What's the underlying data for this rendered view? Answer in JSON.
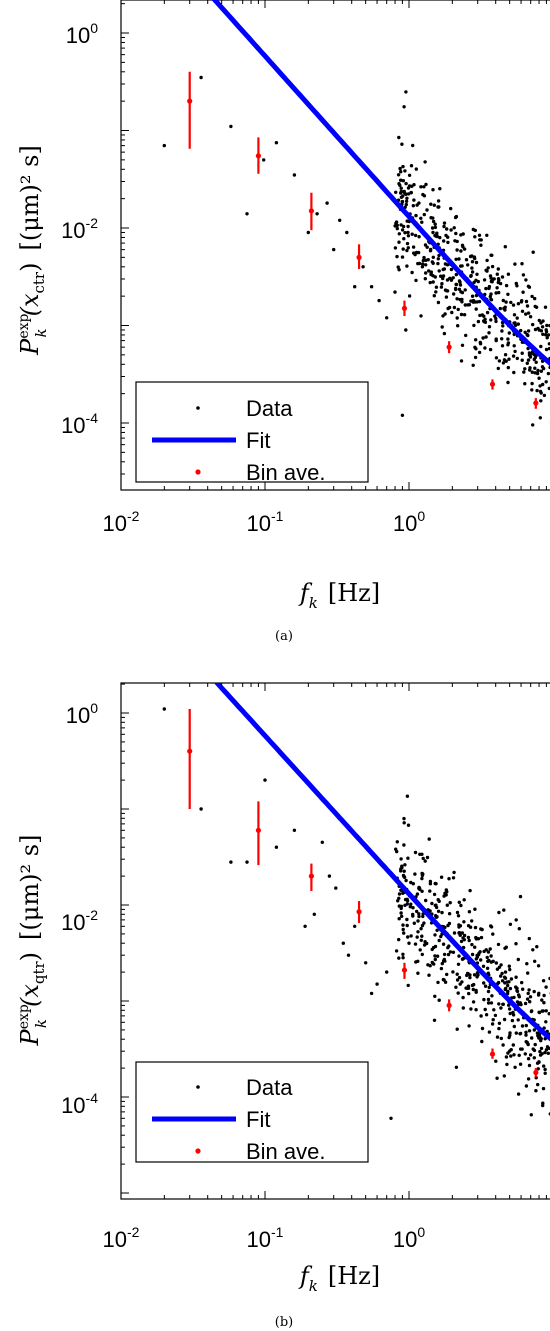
{
  "chart_data": [
    {
      "type": "scatter",
      "panel_caption": "(a)",
      "xlabel": "f_k [Hz]",
      "ylabel": "P_k^exp(x_ctr) [(μm)² s]",
      "xscale": "log",
      "yscale": "log",
      "xlim": [
        0.01,
        10
      ],
      "ylim": [
        1e-05,
        2
      ],
      "xticks": [
        0.01,
        0.1,
        1
      ],
      "xtick_labels": [
        {
          "base": "10",
          "exp": "-2"
        },
        {
          "base": "10",
          "exp": "-1"
        },
        {
          "base": "10",
          "exp": "0"
        }
      ],
      "yticks": [
        0.0001,
        0.01,
        1
      ],
      "ytick_labels": [
        {
          "base": "10",
          "exp": "-4"
        },
        {
          "base": "10",
          "exp": "-2"
        },
        {
          "base": "10",
          "exp": "0"
        }
      ],
      "legend": {
        "position": "lower-left",
        "entries": [
          "Data",
          "Fit",
          "Bin ave."
        ]
      },
      "series": [
        {
          "name": "Data",
          "kind": "points",
          "color": "#000000",
          "seed": 11,
          "points": [
            [
              0.02,
              0.07
            ],
            [
              0.036,
              0.35
            ],
            [
              0.058,
              0.11
            ],
            [
              0.075,
              0.014
            ],
            [
              0.098,
              0.05
            ],
            [
              0.12,
              0.075
            ],
            [
              0.16,
              0.035
            ],
            [
              0.2,
              0.009
            ],
            [
              0.23,
              0.014
            ],
            [
              0.27,
              0.018
            ],
            [
              0.3,
              0.006
            ],
            [
              0.33,
              0.012
            ],
            [
              0.37,
              0.009
            ],
            [
              0.42,
              0.0025
            ],
            [
              0.48,
              0.004
            ],
            [
              0.55,
              0.0025
            ],
            [
              0.62,
              0.0018
            ],
            [
              0.7,
              0.0012
            ],
            [
              0.8,
              0.0022
            ],
            [
              0.9,
              0.00012
            ],
            [
              0.95,
              0.0009
            ],
            [
              1.05,
              0.0035
            ]
          ],
          "cloud": {
            "x_from": 0.8,
            "x_to": 10,
            "count": 520,
            "spread_decades": 0.35
          }
        },
        {
          "name": "Fit",
          "kind": "line",
          "color": "#0000ff",
          "model": {
            "a": 0.013,
            "alpha": 1.65,
            "c": 9.5e-05
          },
          "x_from": 0.02,
          "x_to": 10
        },
        {
          "name": "Bin ave.",
          "kind": "errorbars",
          "color": "#ff0000",
          "points": [
            {
              "x": 0.03,
              "y": 0.2,
              "lo": 0.065,
              "hi": 0.4
            },
            {
              "x": 0.09,
              "y": 0.055,
              "lo": 0.036,
              "hi": 0.085
            },
            {
              "x": 0.21,
              "y": 0.015,
              "lo": 0.0095,
              "hi": 0.023
            },
            {
              "x": 0.45,
              "y": 0.005,
              "lo": 0.0038,
              "hi": 0.0068
            },
            {
              "x": 0.93,
              "y": 0.0015,
              "lo": 0.00125,
              "hi": 0.0018
            },
            {
              "x": 1.9,
              "y": 0.0006,
              "lo": 0.00052,
              "hi": 0.00069
            },
            {
              "x": 3.8,
              "y": 0.00025,
              "lo": 0.00022,
              "hi": 0.00028
            },
            {
              "x": 7.6,
              "y": 0.00016,
              "lo": 0.00014,
              "hi": 0.00018
            }
          ]
        }
      ]
    },
    {
      "type": "scatter",
      "panel_caption": "(b)",
      "xlabel": "f_k [Hz]",
      "ylabel": "P_k^exp(x_qtr) [(μm)² s]",
      "xscale": "log",
      "yscale": "log",
      "xlim": [
        0.01,
        10
      ],
      "ylim": [
        1e-05,
        2
      ],
      "xticks": [
        0.01,
        0.1,
        1
      ],
      "xtick_labels": [
        {
          "base": "10",
          "exp": "-2"
        },
        {
          "base": "10",
          "exp": "-1"
        },
        {
          "base": "10",
          "exp": "0"
        }
      ],
      "yticks": [
        0.0001,
        0.01,
        1
      ],
      "ytick_labels": [
        {
          "base": "10",
          "exp": "-4"
        },
        {
          "base": "10",
          "exp": "-2"
        },
        {
          "base": "10",
          "exp": "0"
        }
      ],
      "legend": {
        "position": "lower-left",
        "entries": [
          "Data",
          "Fit",
          "Bin ave."
        ]
      },
      "series": [
        {
          "name": "Data",
          "kind": "points",
          "color": "#000000",
          "seed": 23,
          "points": [
            [
              0.02,
              1.1
            ],
            [
              0.036,
              0.1
            ],
            [
              0.058,
              0.028
            ],
            [
              0.075,
              0.028
            ],
            [
              0.1,
              0.2
            ],
            [
              0.12,
              0.04
            ],
            [
              0.16,
              0.06
            ],
            [
              0.19,
              0.006
            ],
            [
              0.22,
              0.008
            ],
            [
              0.25,
              0.045
            ],
            [
              0.28,
              0.02
            ],
            [
              0.31,
              0.015
            ],
            [
              0.35,
              0.004
            ],
            [
              0.38,
              0.003
            ],
            [
              0.42,
              0.006
            ],
            [
              0.5,
              0.0025
            ],
            [
              0.6,
              0.0015
            ],
            [
              0.7,
              0.002
            ],
            [
              0.85,
              0.0028
            ],
            [
              0.75,
              6e-05
            ],
            [
              1.0,
              0.004
            ],
            [
              0.55,
              0.0012
            ]
          ],
          "cloud": {
            "x_from": 0.8,
            "x_to": 10,
            "count": 520,
            "spread_decades": 0.35
          }
        },
        {
          "name": "Fit",
          "kind": "line",
          "color": "#0000ff",
          "model": {
            "a": 0.013,
            "alpha": 1.65,
            "c": 9.5e-05
          },
          "x_from": 0.02,
          "x_to": 10
        },
        {
          "name": "Bin ave.",
          "kind": "errorbars",
          "color": "#ff0000",
          "points": [
            {
              "x": 0.03,
              "y": 0.4,
              "lo": 0.1,
              "hi": 1.1
            },
            {
              "x": 0.09,
              "y": 0.06,
              "lo": 0.026,
              "hi": 0.12
            },
            {
              "x": 0.21,
              "y": 0.02,
              "lo": 0.014,
              "hi": 0.027
            },
            {
              "x": 0.45,
              "y": 0.0085,
              "lo": 0.0065,
              "hi": 0.011
            },
            {
              "x": 0.93,
              "y": 0.0021,
              "lo": 0.0017,
              "hi": 0.0025
            },
            {
              "x": 1.9,
              "y": 0.0009,
              "lo": 0.00078,
              "hi": 0.00104
            },
            {
              "x": 3.8,
              "y": 0.00028,
              "lo": 0.00025,
              "hi": 0.00032
            },
            {
              "x": 7.6,
              "y": 0.00018,
              "lo": 0.00016,
              "hi": 0.0002
            }
          ]
        }
      ]
    }
  ],
  "labels": {
    "panels": [
      {
        "caption": "(a)",
        "ylabel_main": "P",
        "ylabel_sup": "exp",
        "ylabel_sub": "k",
        "ylabel_arg": "(x",
        "ylabel_argsub": "ctr",
        "ylabel_close": ")",
        "ylabel_units": "[(μm)² s]",
        "xlabel_main": "f",
        "xlabel_sub": "k",
        "xlabel_units": "[Hz]",
        "legend": {
          "data": "Data",
          "fit": "Fit",
          "bin": "Bin ave."
        },
        "xticks": [
          {
            "base": "10",
            "exp": "-2"
          },
          {
            "base": "10",
            "exp": "-1"
          },
          {
            "base": "10",
            "exp": "0"
          }
        ],
        "yticks": [
          {
            "base": "10",
            "exp": "-4"
          },
          {
            "base": "10",
            "exp": "-2"
          },
          {
            "base": "10",
            "exp": "0"
          }
        ]
      },
      {
        "caption": "(b)",
        "ylabel_main": "P",
        "ylabel_sup": "exp",
        "ylabel_sub": "k",
        "ylabel_arg": "(x",
        "ylabel_argsub": "qtr",
        "ylabel_close": ")",
        "ylabel_units": "[(μm)² s]",
        "xlabel_main": "f",
        "xlabel_sub": "k",
        "xlabel_units": "[Hz]",
        "legend": {
          "data": "Data",
          "fit": "Fit",
          "bin": "Bin ave."
        },
        "xticks": [
          {
            "base": "10",
            "exp": "-2"
          },
          {
            "base": "10",
            "exp": "-1"
          },
          {
            "base": "10",
            "exp": "0"
          }
        ],
        "yticks": [
          {
            "base": "10",
            "exp": "-4"
          },
          {
            "base": "10",
            "exp": "-2"
          },
          {
            "base": "10",
            "exp": "0"
          }
        ]
      }
    ]
  }
}
